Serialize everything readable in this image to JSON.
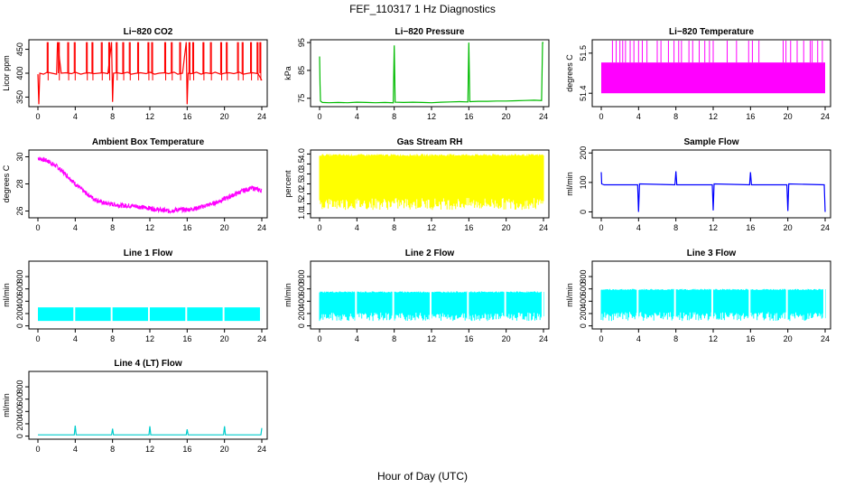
{
  "figure": {
    "title": "FEF_110317  1 Hz Diagnostics",
    "xlabel": "Hour of Day (UTC)"
  },
  "chart_data": [
    {
      "type": "line",
      "title": "Li−820 CO2",
      "ylabel": "Licor ppm",
      "color": "#ff0000",
      "xlim": [
        0,
        24
      ],
      "ylim": [
        330,
        470
      ],
      "xticks": [
        0,
        4,
        8,
        12,
        16,
        20,
        24
      ],
      "yticks": [
        350,
        400,
        450
      ],
      "series": [
        {
          "x": [
            0,
            0.1,
            0.2,
            0.6,
            1.0,
            1.5,
            2.0,
            2.1,
            2.5,
            3.0,
            3.6,
            4.0,
            4.6,
            5.0,
            5.5,
            6.0,
            6.5,
            7.0,
            7.5,
            7.9,
            8.0,
            8.1,
            8.5,
            9.0,
            9.6,
            10.0,
            10.6,
            11.0,
            11.6,
            12.0,
            12.5,
            13.0,
            13.6,
            14.0,
            14.6,
            15.0,
            15.5,
            15.9,
            16.0,
            16.1,
            16.5,
            17.0,
            17.5,
            18.0,
            18.6,
            19.0,
            19.6,
            20.0,
            20.5,
            21.0,
            21.6,
            22.0,
            22.6,
            23.0,
            23.6,
            24.0
          ],
          "y": [
            398,
            335,
            400,
            398,
            402,
            400,
            398,
            465,
            400,
            401,
            399,
            402,
            398,
            400,
            401,
            399,
            400,
            401,
            399,
            465,
            340,
            400,
            401,
            399,
            402,
            398,
            400,
            401,
            399,
            402,
            398,
            400,
            401,
            399,
            402,
            398,
            400,
            465,
            335,
            400,
            399,
            402,
            398,
            401,
            399,
            402,
            398,
            400,
            401,
            399,
            402,
            398,
            400,
            401,
            399,
            385
          ]
        }
      ],
      "spikes": [
        1.0,
        2.2,
        3.2,
        3.9,
        5.2,
        5.8,
        6.8,
        7.6,
        8.4,
        9.1,
        9.8,
        10.7,
        11.8,
        12.2,
        13.6,
        14.3,
        15.2,
        16.2,
        16.6,
        17.7,
        18.5,
        19.6,
        20.2,
        21.4,
        21.9,
        22.8,
        23.5,
        23.8
      ],
      "spike_top": 465,
      "spike_bottom": 385
    },
    {
      "type": "line",
      "title": "Li−820 Pressure",
      "ylabel": "kPa",
      "color": "#00bb00",
      "xlim": [
        0,
        24
      ],
      "ylim": [
        72,
        96
      ],
      "xticks": [
        0,
        4,
        8,
        12,
        16,
        20,
        24
      ],
      "yticks": [
        75,
        85,
        95
      ],
      "series": [
        {
          "x": [
            0,
            0.05,
            0.1,
            0.3,
            1,
            2,
            3,
            4,
            5,
            6,
            7,
            7.9,
            8.0,
            8.1,
            9,
            10,
            11,
            12,
            13,
            14,
            15,
            15.9,
            16.0,
            16.1,
            17,
            18,
            19,
            20,
            21,
            22,
            23,
            23.8,
            23.9,
            24
          ],
          "y": [
            90,
            80,
            74,
            73.5,
            73.4,
            73.5,
            73.4,
            73.6,
            73.5,
            73.4,
            73.5,
            73.4,
            94,
            73.6,
            73.5,
            73.6,
            73.5,
            73.4,
            73.6,
            73.7,
            73.8,
            73.7,
            95,
            73.8,
            73.9,
            73.9,
            74.0,
            74.0,
            74.1,
            74.2,
            74.3,
            74.2,
            95,
            95
          ]
        }
      ]
    },
    {
      "type": "area",
      "title": "Li−820 Temperature",
      "ylabel": "degrees C",
      "color": "#ff00ff",
      "xlim": [
        0,
        24
      ],
      "ylim": [
        51.43,
        51.48
      ],
      "xticks": [
        0,
        4,
        8,
        12,
        16,
        20,
        24
      ],
      "yticks": [
        51.44,
        51.47
      ],
      "band": [
        51.44,
        51.463
      ],
      "spike_top": 51.48,
      "spikes": [
        1.2,
        1.6,
        2.0,
        2.3,
        2.6,
        3.1,
        3.5,
        4.0,
        4.4,
        4.9,
        6.0,
        6.4,
        7.2,
        7.8,
        8.3,
        8.6,
        9.4,
        9.8,
        10.5,
        11.1,
        11.6,
        12.0,
        13.5,
        14.5,
        15.8,
        16.2,
        16.9,
        19.5,
        19.8,
        20.3,
        21.0,
        21.7,
        22.4,
        22.6,
        23.2,
        23.7
      ]
    },
    {
      "type": "line",
      "title": "Ambient Box Temperature",
      "ylabel": "degrees C",
      "color": "#ff00ff",
      "xlim": [
        0,
        24
      ],
      "ylim": [
        25.5,
        30.5
      ],
      "xticks": [
        0,
        4,
        8,
        12,
        16,
        20,
        24
      ],
      "yticks": [
        26,
        28,
        30
      ],
      "series": [
        {
          "x": [
            0,
            1,
            2,
            3,
            4,
            5,
            6,
            7,
            8,
            9,
            10,
            11,
            12,
            13,
            14,
            15,
            16,
            17,
            18,
            19,
            20,
            21,
            22,
            23,
            24
          ],
          "y": [
            29.9,
            29.7,
            29.3,
            28.7,
            28.0,
            27.4,
            26.9,
            26.6,
            26.5,
            26.4,
            26.4,
            26.3,
            26.2,
            26.1,
            26.0,
            26.1,
            26.1,
            26.2,
            26.4,
            26.6,
            26.9,
            27.2,
            27.5,
            27.7,
            27.5
          ]
        }
      ],
      "noise": 0.35
    },
    {
      "type": "area",
      "title": "Gas Stream RH",
      "ylabel": "percent",
      "color": "#ffff00",
      "xlim": [
        0,
        24
      ],
      "ylim": [
        0.8,
        4.2
      ],
      "xticks": [
        0,
        4,
        8,
        12,
        16,
        20,
        24
      ],
      "yticks": [
        1.0,
        1.5,
        2.0,
        2.5,
        3.0,
        3.5,
        4.0
      ],
      "band": [
        1.2,
        4.0
      ],
      "solid": [
        2.7,
        3.9
      ]
    },
    {
      "type": "line",
      "title": "Sample Flow",
      "ylabel": "ml/min",
      "color": "#0000ff",
      "xlim": [
        0,
        24
      ],
      "ylim": [
        -20,
        210
      ],
      "xticks": [
        0,
        4,
        8,
        12,
        16,
        20,
        24
      ],
      "yticks": [
        0,
        100,
        200
      ],
      "series": [
        {
          "x": [
            0,
            0.05,
            0.3,
            3.9,
            4.0,
            4.1,
            7.9,
            8.0,
            8.1,
            11.9,
            12.0,
            12.1,
            15.9,
            16.0,
            16.1,
            19.9,
            20.0,
            20.1,
            23.9,
            24.0
          ],
          "y": [
            135,
            95,
            92,
            92,
            0,
            95,
            92,
            138,
            92,
            92,
            5,
            95,
            92,
            135,
            92,
            92,
            3,
            95,
            92,
            0
          ]
        }
      ]
    },
    {
      "type": "area",
      "title": "Line 1 Flow",
      "ylabel": "ml/min",
      "color": "#00ffff",
      "xlim": [
        0,
        24
      ],
      "ylim": [
        -50,
        1050
      ],
      "xticks": [
        0,
        4,
        8,
        12,
        16,
        20,
        24
      ],
      "yticks": [
        0,
        200,
        400,
        600,
        800
      ],
      "band": [
        80,
        300
      ],
      "gaps": [
        3.9,
        7.9,
        11.9,
        15.9,
        19.9,
        23.9
      ]
    },
    {
      "type": "area",
      "title": "Line 2 Flow",
      "ylabel": "ml/min",
      "color": "#00ffff",
      "xlim": [
        0,
        24
      ],
      "ylim": [
        -50,
        1050
      ],
      "xticks": [
        0,
        4,
        8,
        12,
        16,
        20,
        24
      ],
      "yticks": [
        0,
        200,
        400,
        600,
        800
      ],
      "band": [
        80,
        560
      ],
      "solid": [
        420,
        540
      ],
      "gaps": [
        3.9,
        7.9,
        11.9,
        15.9,
        19.9,
        23.9
      ]
    },
    {
      "type": "area",
      "title": "Line 3 Flow",
      "ylabel": "ml/min",
      "color": "#00ffff",
      "xlim": [
        0,
        24
      ],
      "ylim": [
        -50,
        1050
      ],
      "xticks": [
        0,
        4,
        8,
        12,
        16,
        20,
        24
      ],
      "yticks": [
        0,
        200,
        400,
        600,
        800
      ],
      "band": [
        80,
        600
      ],
      "solid": [
        440,
        580
      ],
      "gaps": [
        3.9,
        7.9,
        11.9,
        15.9,
        19.9,
        23.9
      ]
    },
    {
      "type": "line",
      "title": "Line 4 (LT) Flow",
      "ylabel": "ml/min",
      "color": "#00cccc",
      "xlim": [
        0,
        24
      ],
      "ylim": [
        -50,
        1050
      ],
      "xticks": [
        0,
        4,
        8,
        12,
        16,
        20,
        24
      ],
      "yticks": [
        0,
        200,
        400,
        600,
        800
      ],
      "series": [
        {
          "x": [
            0,
            3.9,
            4.0,
            4.1,
            7.9,
            8.0,
            8.1,
            11.9,
            12.0,
            12.1,
            15.9,
            16.0,
            16.1,
            19.9,
            20.0,
            20.1,
            23.9,
            24.0
          ],
          "y": [
            20,
            20,
            170,
            20,
            20,
            120,
            20,
            20,
            160,
            20,
            20,
            110,
            20,
            20,
            160,
            20,
            20,
            130
          ]
        }
      ]
    }
  ]
}
